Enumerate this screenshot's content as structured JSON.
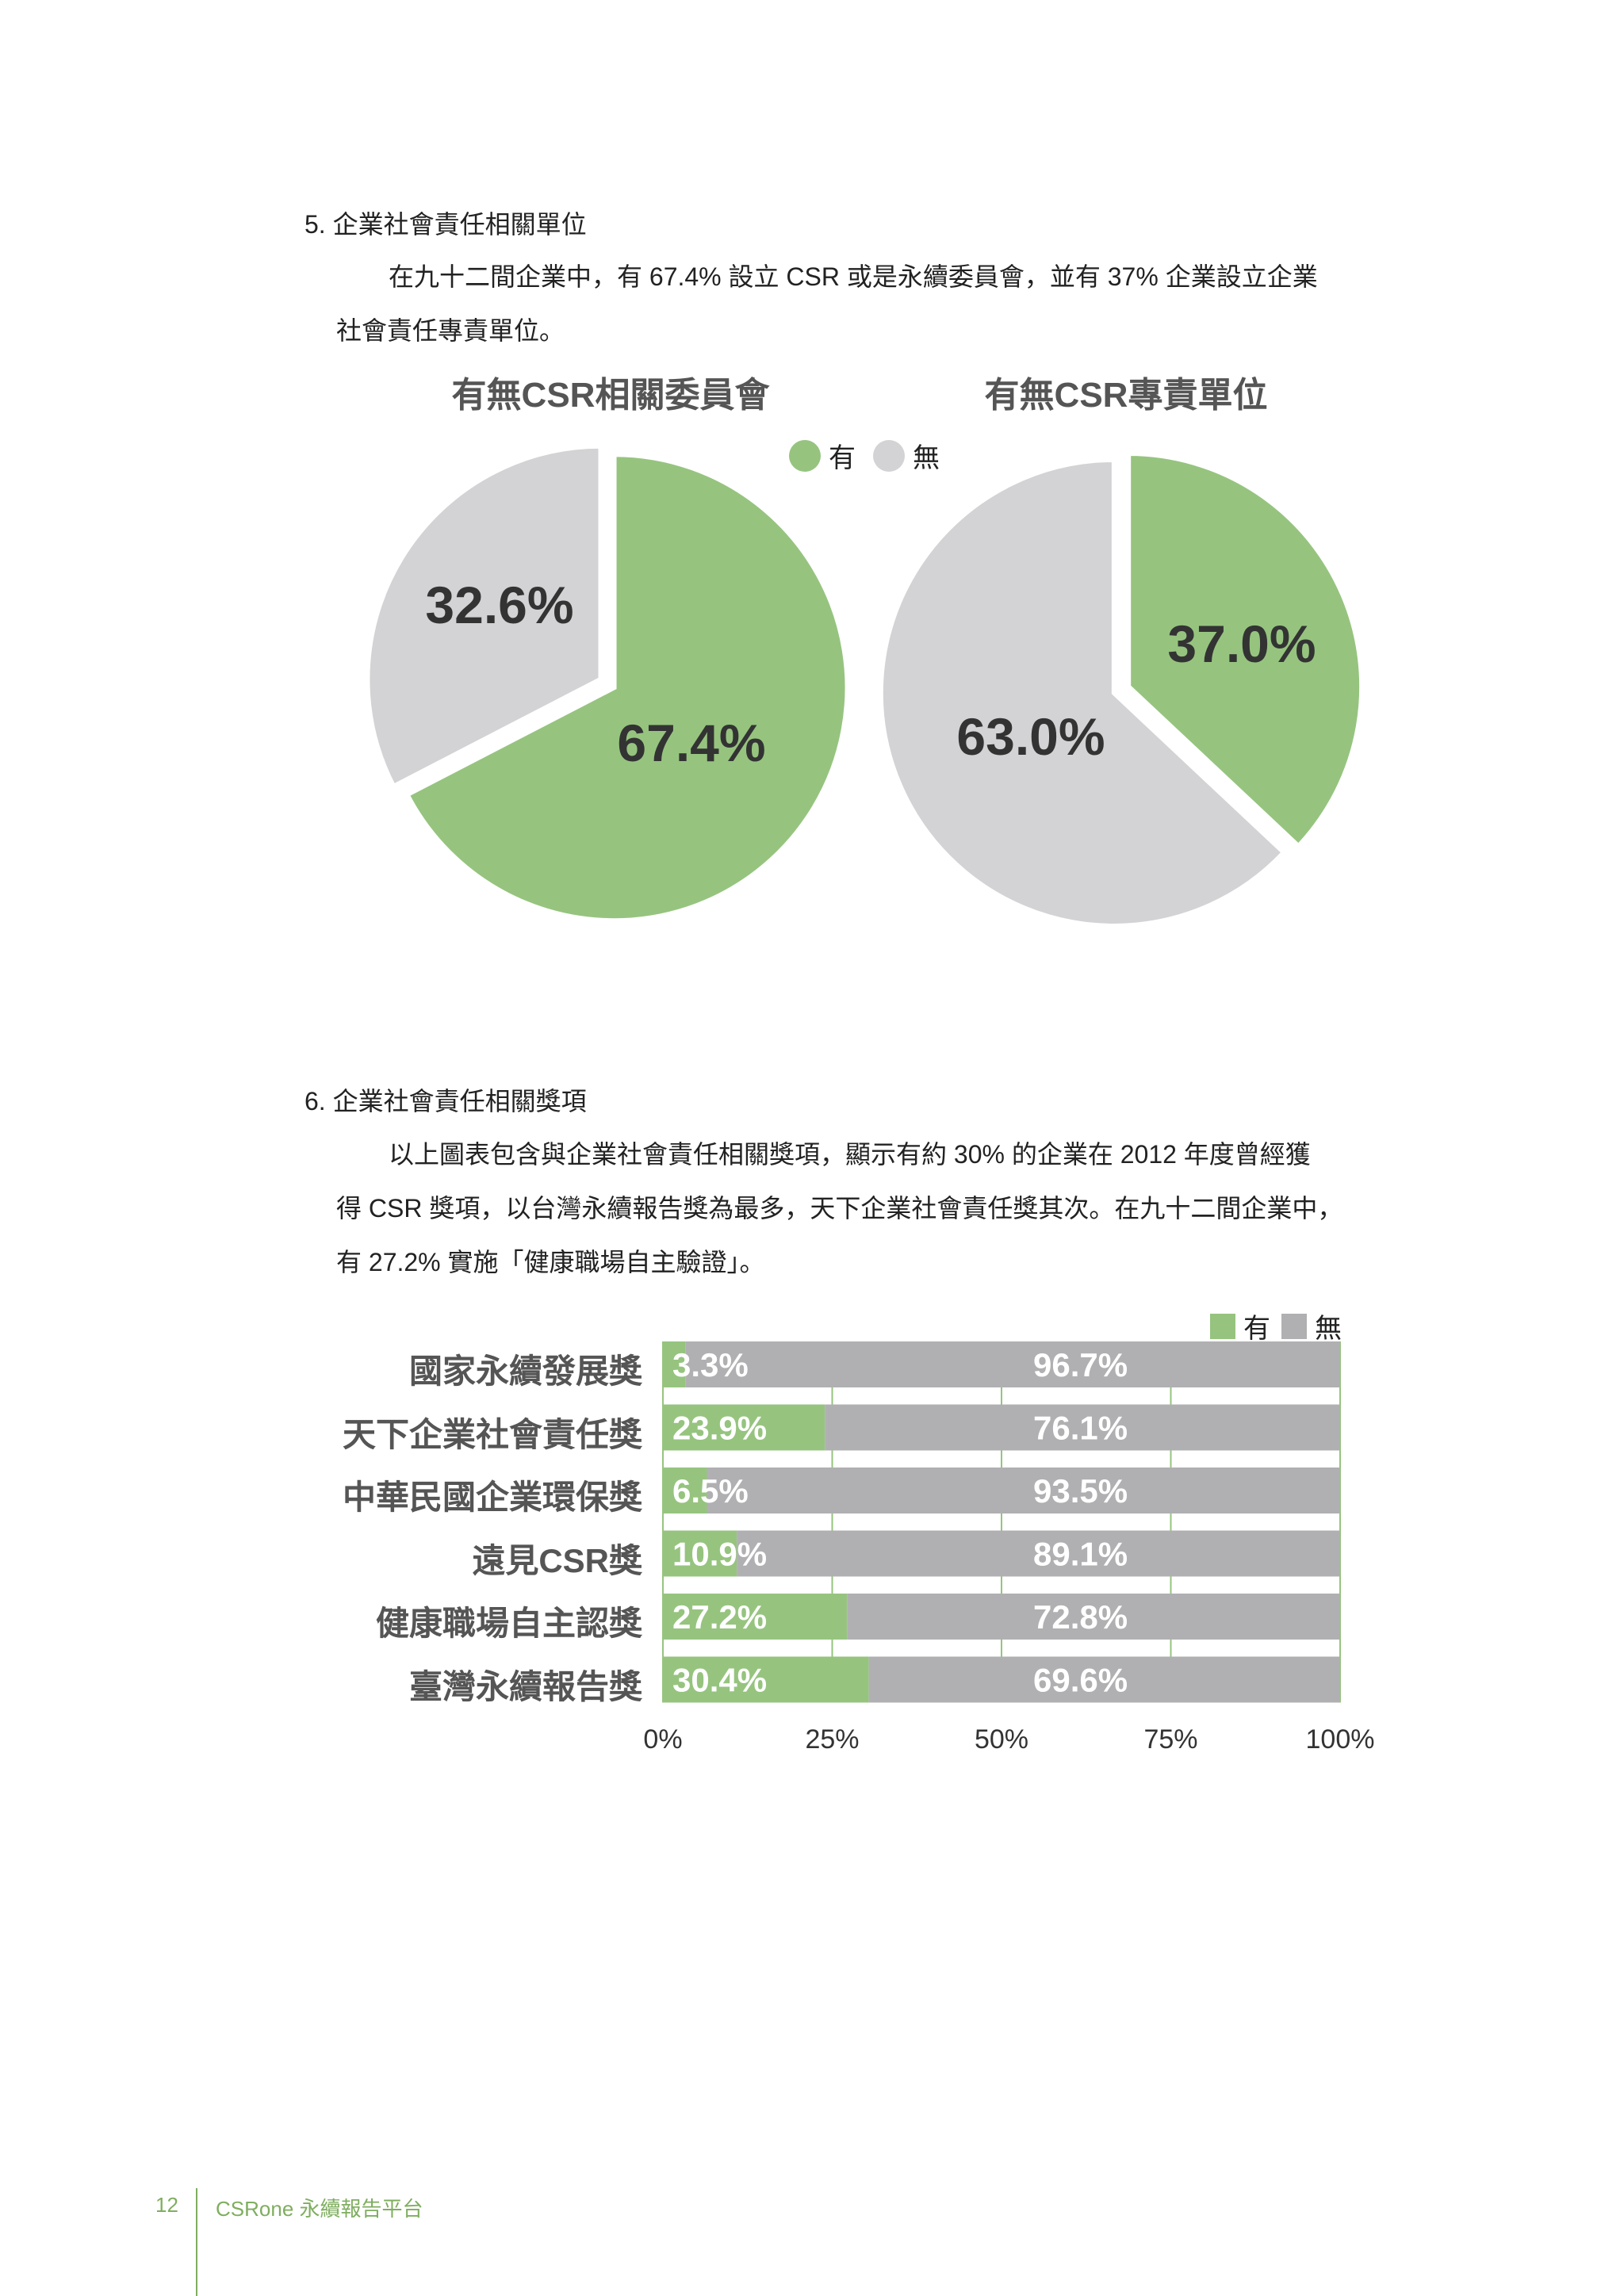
{
  "section5": {
    "heading": "5. 企業社會責任相關單位",
    "para_line1": "在九十二間企業中，有 67.4% 設立 CSR 或是永續委員會，並有 37% 企業設立企業",
    "para_line2": "社會責任專責單位。"
  },
  "pie_legend": {
    "yes": "有",
    "no": "無"
  },
  "section6": {
    "heading": "6. 企業社會責任相關獎項",
    "para_line1": "以上圖表包含與企業社會責任相關獎項，顯示有約 30% 的企業在 2012 年度曾經獲",
    "para_line2": "得 CSR 獎項，以台灣永續報告獎為最多，天下企業社會責任獎其次。在九十二間企業中，",
    "para_line3": "有 27.2% 實施「健康職場自主驗證」。"
  },
  "bar_legend": {
    "yes": "有",
    "no": "無"
  },
  "colors": {
    "yes": "#96c47f",
    "no": "#d3d3d5",
    "bar_no": "#b0b0b2",
    "label": "#333333"
  },
  "chart_data": [
    {
      "type": "pie",
      "title": "有無CSR相關委員會",
      "slices": [
        {
          "name": "有",
          "value": 67.4,
          "label": "67.4%"
        },
        {
          "name": "無",
          "value": 32.6,
          "label": "32.6%"
        }
      ]
    },
    {
      "type": "pie",
      "title": "有無CSR專責單位",
      "slices": [
        {
          "name": "有",
          "value": 37.0,
          "label": "37.0%"
        },
        {
          "name": "無",
          "value": 63.0,
          "label": "63.0%"
        }
      ]
    },
    {
      "type": "bar",
      "orientation": "horizontal-stacked-100",
      "categories": [
        "國家永續發展獎",
        "天下企業社會責任獎",
        "中華民國企業環保獎",
        "遠見CSR獎",
        "健康職場自主認獎",
        "臺灣永續報告獎"
      ],
      "series": [
        {
          "name": "有",
          "values": [
            3.3,
            23.9,
            6.5,
            10.9,
            27.2,
            30.4
          ],
          "labels": [
            "3.3%",
            "23.9%",
            "6.5%",
            "10.9%",
            "27.2%",
            "30.4%"
          ]
        },
        {
          "name": "無",
          "values": [
            96.7,
            76.1,
            93.5,
            89.1,
            72.8,
            69.6
          ],
          "labels": [
            "96.7%",
            "76.1%",
            "93.5%",
            "89.1%",
            "72.8%",
            "69.6%"
          ]
        }
      ],
      "xlim": [
        0,
        100
      ],
      "xticks": [
        "0%",
        "25%",
        "50%",
        "75%",
        "100%"
      ],
      "legend": "top-right"
    }
  ],
  "footer": {
    "page": "12",
    "text": "CSRone 永續報告平台"
  }
}
